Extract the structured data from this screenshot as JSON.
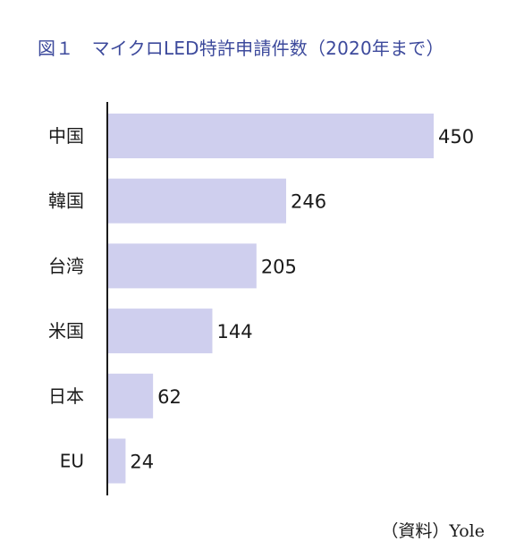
{
  "chart_data": {
    "type": "bar",
    "orientation": "horizontal",
    "title": "図１　マイクロLED特許申請件数（2020年まで）",
    "categories": [
      "中国",
      "韓国",
      "台湾",
      "米国",
      "日本",
      "EU"
    ],
    "values": [
      450,
      246,
      205,
      144,
      62,
      24
    ],
    "data_labels": [
      "450",
      "246",
      "205",
      "144",
      "62",
      "24"
    ],
    "xlim": [
      0,
      450
    ],
    "grid": false,
    "legend": "none",
    "bar_color": "#cfcfee",
    "axis_color": "#1a1a1a",
    "title_color": "#3d4a9c",
    "source": "（資料）Yole"
  }
}
